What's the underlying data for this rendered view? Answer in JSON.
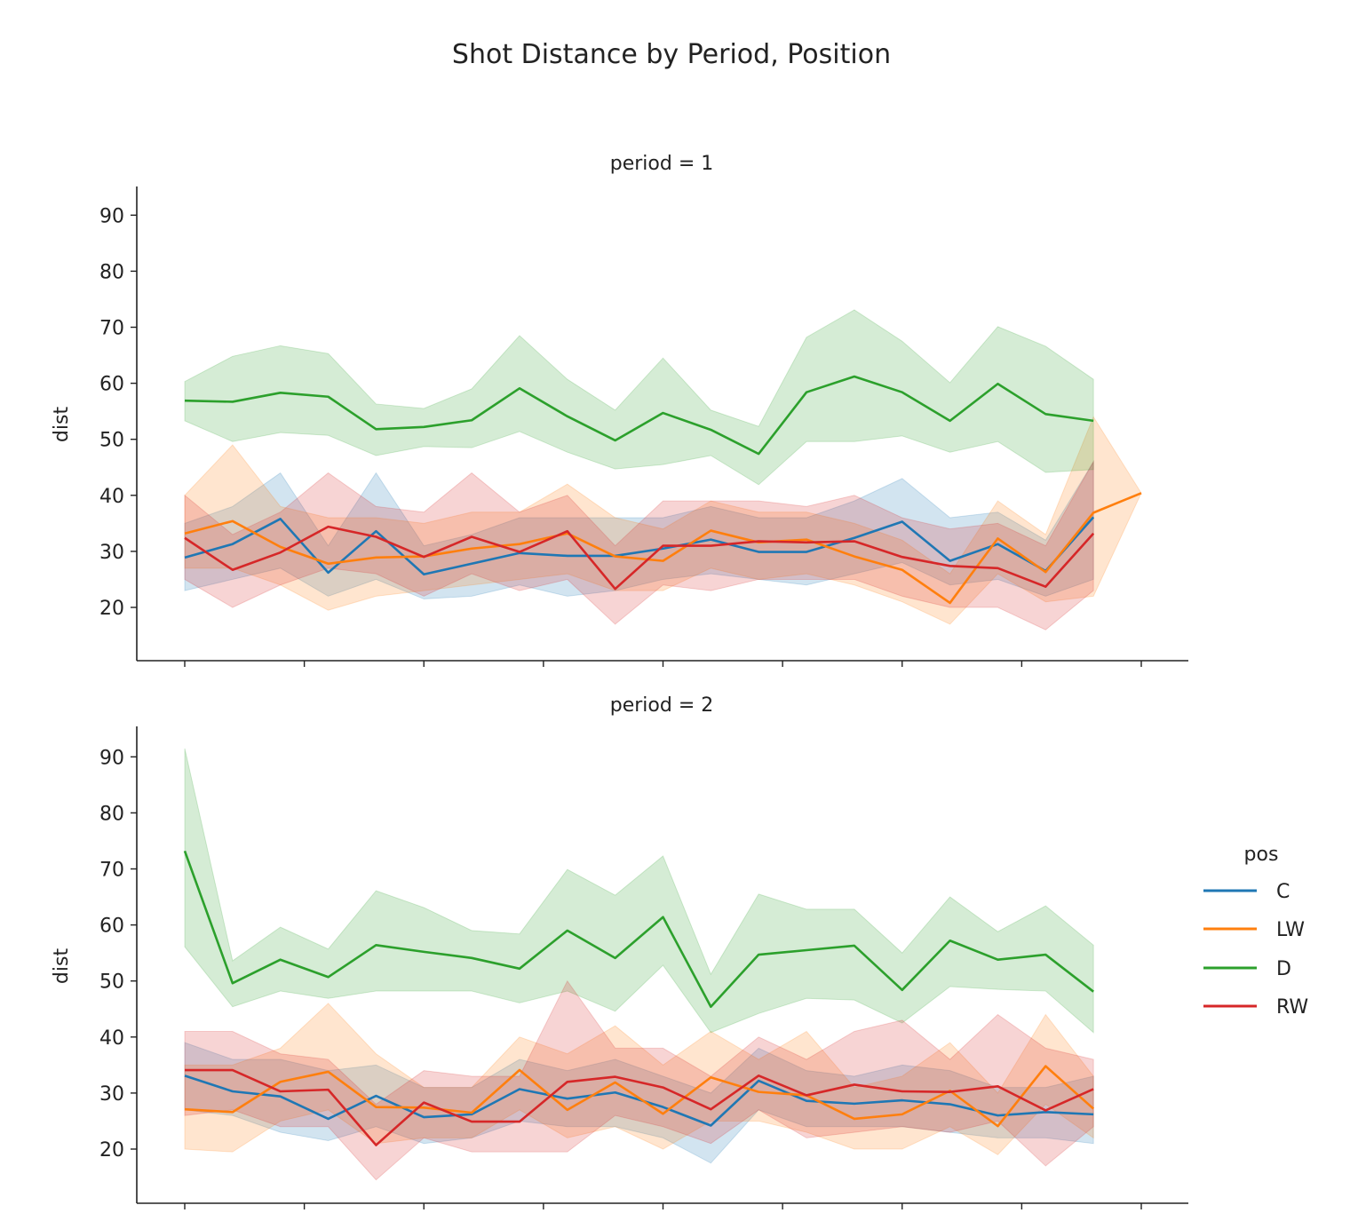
{
  "title": "Shot Distance by Period, Position",
  "legend": {
    "title": "pos",
    "placement": "right",
    "entries": [
      {
        "label": "C",
        "color": "#1f77b4"
      },
      {
        "label": "LW",
        "color": "#ff7f0e"
      },
      {
        "label": "D",
        "color": "#2ca02c"
      },
      {
        "label": "RW",
        "color": "#d62728"
      }
    ]
  },
  "chart_data": [
    {
      "type": "line",
      "title": "period = 1",
      "xlabel": "",
      "ylabel": "dist",
      "xlim": [
        -1,
        21
      ],
      "ylim": [
        15,
        95
      ],
      "x_ticks": [
        0,
        2.5,
        5,
        7.5,
        10,
        12.5,
        15,
        17.5,
        20
      ],
      "y_ticks": [
        20,
        30,
        40,
        50,
        60,
        70,
        80,
        90
      ],
      "grid": false,
      "band": "confidence interval",
      "series": [
        {
          "name": "C",
          "color": "#1f77b4",
          "x": [
            0,
            1,
            2,
            3,
            4,
            5,
            6,
            7,
            8,
            9,
            10,
            11,
            12,
            13,
            14,
            15,
            16,
            17,
            18,
            19
          ],
          "values": [
            28.9,
            31.3,
            35.8,
            26.2,
            33.6,
            25.9,
            27.8,
            29.7,
            29.2,
            29.2,
            30.5,
            32.1,
            29.9,
            29.9,
            32.4,
            35.3,
            28.3,
            31.3,
            26.5,
            36.1
          ],
          "lower": [
            23,
            25,
            27,
            22,
            25,
            21.5,
            22,
            24,
            22,
            23,
            25,
            26,
            25,
            24,
            26,
            28,
            24,
            25,
            22,
            25
          ],
          "upper": [
            35,
            38,
            44,
            31,
            44,
            31,
            33,
            36,
            36,
            36,
            36,
            38,
            36,
            36,
            39,
            43,
            36,
            37,
            32,
            46
          ]
        },
        {
          "name": "LW",
          "color": "#ff7f0e",
          "x": [
            0,
            1,
            2,
            3,
            4,
            5,
            6,
            7,
            8,
            9,
            10,
            11,
            12,
            13,
            14,
            15,
            16,
            17,
            18,
            19,
            20
          ],
          "values": [
            33.2,
            35.4,
            30.8,
            27.8,
            28.9,
            29.1,
            30.5,
            31.3,
            33.2,
            29.1,
            28.3,
            33.7,
            31.6,
            32.1,
            29.1,
            26.7,
            20.8,
            32.3,
            26.3,
            36.9,
            40.4
          ],
          "lower": [
            27,
            27,
            24,
            19.5,
            22,
            23,
            24,
            25,
            26,
            23,
            23,
            27,
            25,
            26,
            24,
            21,
            17,
            26,
            21,
            22,
            40.4
          ],
          "upper": [
            40,
            49,
            38,
            36,
            36,
            35,
            37,
            37,
            42,
            36,
            34,
            39,
            37,
            37,
            35,
            32,
            26,
            39,
            33,
            54,
            40.4
          ]
        },
        {
          "name": "D",
          "color": "#2ca02c",
          "x": [
            0,
            1,
            2,
            3,
            4,
            5,
            6,
            7,
            8,
            9,
            10,
            11,
            12,
            13,
            14,
            15,
            16,
            17,
            18,
            19
          ],
          "values": [
            56.9,
            56.7,
            58.3,
            57.6,
            51.8,
            52.2,
            53.4,
            59.1,
            54.1,
            49.8,
            54.7,
            51.7,
            47.4,
            58.4,
            61.2,
            58.4,
            53.3,
            59.9,
            54.5,
            53.3
          ],
          "lower": [
            53.3,
            49.6,
            51.2,
            50.7,
            47.1,
            48.7,
            48.5,
            51.4,
            47.7,
            44.7,
            45.5,
            47.1,
            41.9,
            49.6,
            49.6,
            50.6,
            47.7,
            49.6,
            44.1,
            44.6
          ],
          "upper": [
            60.3,
            64.8,
            66.7,
            65.3,
            56.3,
            55.5,
            59.0,
            68.5,
            60.7,
            55.2,
            64.5,
            55.2,
            52.3,
            68.2,
            73.1,
            67.5,
            60.1,
            70.1,
            66.6,
            60.7
          ]
        },
        {
          "name": "RW",
          "color": "#d62728",
          "x": [
            0,
            1,
            2,
            3,
            4,
            5,
            6,
            7,
            8,
            9,
            10,
            11,
            12,
            13,
            14,
            15,
            16,
            17,
            18,
            19
          ],
          "values": [
            32.4,
            26.7,
            29.8,
            34.4,
            32.6,
            29.0,
            32.6,
            29.9,
            33.6,
            23.3,
            31.0,
            31.0,
            31.8,
            31.6,
            31.8,
            29.0,
            27.4,
            27.0,
            23.7,
            33.2
          ],
          "lower": [
            25,
            20,
            24,
            27,
            26,
            22,
            26,
            23,
            25,
            17,
            24,
            23,
            25,
            25,
            25,
            22,
            20,
            20,
            16,
            23
          ],
          "upper": [
            40,
            33,
            37,
            44,
            38,
            37,
            44,
            37,
            40,
            31,
            39,
            39,
            39,
            38,
            40,
            36,
            34,
            35,
            31,
            46
          ]
        }
      ]
    },
    {
      "type": "line",
      "title": "period = 2",
      "xlabel": "",
      "ylabel": "dist",
      "xlim": [
        -1,
        21
      ],
      "ylim": [
        15,
        95
      ],
      "x_ticks": [
        0,
        2.5,
        5,
        7.5,
        10,
        12.5,
        15,
        17.5,
        20
      ],
      "y_ticks": [
        20,
        30,
        40,
        50,
        60,
        70,
        80,
        90
      ],
      "grid": false,
      "band": "confidence interval",
      "series": [
        {
          "name": "C",
          "color": "#1f77b4",
          "x": [
            0,
            1,
            2,
            3,
            4,
            5,
            6,
            7,
            8,
            9,
            10,
            11,
            12,
            13,
            14,
            15,
            16,
            17,
            18,
            19
          ],
          "values": [
            33.1,
            30.3,
            29.4,
            25.4,
            29.5,
            25.7,
            26.2,
            30.7,
            29.0,
            30.1,
            27.5,
            24.2,
            32.2,
            28.6,
            28.1,
            28.7,
            28.0,
            26.0,
            26.6,
            26.2
          ],
          "lower": [
            27,
            26,
            23,
            21.5,
            24,
            21,
            22,
            25,
            24,
            24,
            22,
            17.5,
            27,
            24,
            24,
            24,
            23,
            22,
            22,
            21
          ],
          "upper": [
            39,
            36,
            36,
            34,
            35,
            31,
            31,
            36,
            34,
            36,
            33,
            30,
            38,
            34,
            33,
            35,
            34,
            31,
            31,
            33
          ]
        },
        {
          "name": "LW",
          "color": "#ff7f0e",
          "x": [
            0,
            1,
            2,
            3,
            4,
            5,
            6,
            7,
            8,
            9,
            10,
            11,
            12,
            13,
            14,
            15,
            16,
            17,
            18,
            19
          ],
          "values": [
            27.1,
            26.6,
            32.0,
            33.8,
            27.5,
            27.4,
            26.5,
            34.1,
            27.0,
            31.9,
            26.3,
            32.8,
            30.2,
            29.6,
            25.4,
            26.2,
            30.4,
            24.1,
            34.8,
            27.2
          ],
          "lower": [
            20,
            19.5,
            25,
            27,
            21,
            22,
            22,
            27,
            22,
            24,
            20,
            25,
            25,
            23,
            20,
            20,
            24,
            19,
            28,
            22
          ],
          "upper": [
            35,
            35,
            38,
            46,
            37,
            31,
            31,
            40,
            37,
            42,
            35,
            41,
            36,
            41,
            31,
            33,
            39,
            30,
            44,
            33
          ]
        },
        {
          "name": "D",
          "color": "#2ca02c",
          "x": [
            0,
            1,
            2,
            3,
            4,
            5,
            6,
            7,
            8,
            9,
            10,
            11,
            12,
            13,
            14,
            15,
            16,
            17,
            18,
            19
          ],
          "values": [
            73.2,
            49.6,
            53.8,
            50.7,
            56.4,
            55.2,
            54.1,
            52.2,
            59.0,
            54.1,
            61.4,
            45.4,
            54.7,
            55.5,
            56.3,
            48.4,
            57.2,
            53.8,
            54.7,
            48.1
          ],
          "lower": [
            56.1,
            45.4,
            48.2,
            46.9,
            48.2,
            48.2,
            48.2,
            46.1,
            48.2,
            44.6,
            52.8,
            40.8,
            44.2,
            46.9,
            46.6,
            42.5,
            49.0,
            48.5,
            48.2,
            40.8
          ],
          "upper": [
            91.5,
            53.6,
            59.6,
            55.7,
            66.1,
            63.1,
            59.0,
            58.4,
            69.9,
            65.3,
            72.3,
            51.2,
            65.5,
            62.8,
            62.8,
            55.0,
            65.0,
            58.8,
            63.4,
            56.4
          ]
        },
        {
          "name": "RW",
          "color": "#d62728",
          "x": [
            0,
            1,
            2,
            3,
            4,
            5,
            6,
            7,
            8,
            9,
            10,
            11,
            12,
            13,
            14,
            15,
            16,
            17,
            18,
            19
          ],
          "values": [
            34.1,
            34.1,
            30.3,
            30.6,
            20.7,
            28.3,
            24.9,
            24.9,
            32.0,
            32.9,
            31.0,
            27.1,
            33.1,
            29.6,
            31.5,
            30.3,
            30.2,
            31.2,
            26.9,
            30.7
          ],
          "lower": [
            26,
            27,
            24,
            24,
            14.5,
            22,
            19.5,
            19.5,
            19.5,
            26,
            24,
            21,
            27,
            22,
            23,
            24,
            23,
            25,
            17,
            24
          ],
          "upper": [
            41,
            41,
            37,
            36,
            28,
            34,
            33,
            33,
            50,
            38,
            38,
            33,
            40,
            36,
            41,
            43,
            36,
            44,
            38,
            36
          ]
        }
      ]
    }
  ]
}
